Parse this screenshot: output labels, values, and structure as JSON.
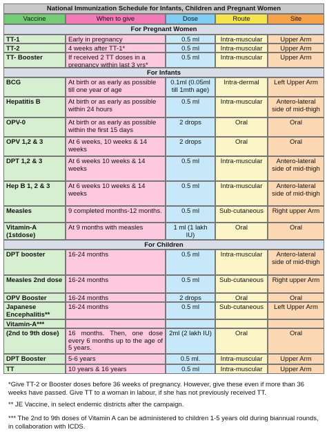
{
  "title": "National Immunization Schedule for Infants, Children and Pregnant Women",
  "header": [
    "Vaccine",
    "When to give",
    "Dose",
    "Route",
    "Site"
  ],
  "sections": [
    {
      "title": "For Pregnant Women",
      "rows": [
        [
          "TT-1",
          "Early in pregnancy",
          "0.5 ml",
          "Intra-muscular",
          "Upper Arm"
        ],
        [
          "TT-2",
          "4 weeks after TT-1*",
          "0.5 ml",
          "Intra-muscular",
          "Upper Arm"
        ],
        [
          "TT- Booster",
          "If received 2 TT doses in a pregnancy within last 3 yrs*",
          "0.5 ml",
          "Intra-muscular",
          "Upper Arm"
        ]
      ]
    },
    {
      "title": "For Infants",
      "rows": [
        [
          "BCG",
          "At birth or as early as possible till one year of age",
          "0.1ml (0.05ml till 1mth age)",
          "Intra-dermal",
          "Left Upper Arm"
        ],
        [
          "Hepatitis B",
          "At birth or as early as possible within 24 hours",
          "0.5 ml",
          "Intra-muscular",
          "Antero-lateral side of mid-thigh"
        ],
        [
          "OPV-0",
          "At birth or as early as possible within the first 15 days",
          "2 drops",
          "Oral",
          "Oral"
        ],
        [
          "OPV 1,2 & 3",
          "At 6 weeks, 10 weeks & 14 weeks",
          "2 drops",
          "Oral",
          "Oral"
        ],
        [
          "DPT 1,2 & 3",
          "At 6 weeks 10 weeks & 14 weeks",
          "0.5 ml",
          "Intra-muscular",
          "Antero-lateral side of mid-thigh"
        ],
        [
          "Hep B 1, 2 & 3",
          "At 6 weeks 10 weeks & 14 weeks",
          "0.5 ml",
          "Intra-muscular",
          "Antero-lateral side of mid-thigh"
        ],
        [
          "Measles",
          "9 completed months-12 months.",
          "0.5 ml",
          "Sub-cutaneous",
          "Right upper Arm"
        ],
        [
          "Vitamin-A (1stdose)",
          "At 9 months with measles",
          "1 ml (1 lakh IU)",
          "Oral",
          "Oral"
        ]
      ]
    },
    {
      "title": "For Children",
      "rows": [
        [
          "DPT booster",
          "16-24 months",
          "0.5 ml",
          "Intra-muscular",
          "Antero-lateral side of mid-thigh"
        ],
        [
          "Measles 2nd dose",
          "16-24 months",
          "0.5 ml",
          "Sub-cutaneous",
          "Right upper Arm"
        ],
        [
          "OPV Booster",
          "16-24 months",
          "2 drops",
          "Oral",
          "Oral"
        ],
        [
          "Japanese Encephalitis**",
          "16-24 months",
          "0.5 ml",
          "Sub-cutaneous",
          "Left Upper Arm"
        ],
        [
          "Vitamin-A***",
          null,
          null,
          null,
          null
        ],
        [
          "(2nd to 9th dose)",
          "16 months. Then, one dose every 6 months up to the age of 5 years.",
          "2ml (2 lakh IU)",
          "Oral",
          "Oral"
        ],
        [
          "DPT Booster",
          "5-6 years",
          "0.5 ml.",
          "Intra-muscular",
          "Upper Arm"
        ],
        [
          "TT",
          "10 years & 16 years",
          "0.5 ml",
          "Intra-muscular",
          "Upper Arm"
        ]
      ]
    }
  ],
  "footnotes": [
    "*Give TT-2 or Booster doses before 36 weeks of pregnancy. However, give these even if more than 36 weeks have passed.  Give TT to a woman in labour, if she has not previously received TT.",
    "** JE Vaccine, in select endemic districts after the campaign.",
    "*** The 2nd to 9th doses of Vitamin A can be administered to children 1-5 years old during biannual rounds, in collaboration with ICDS."
  ]
}
